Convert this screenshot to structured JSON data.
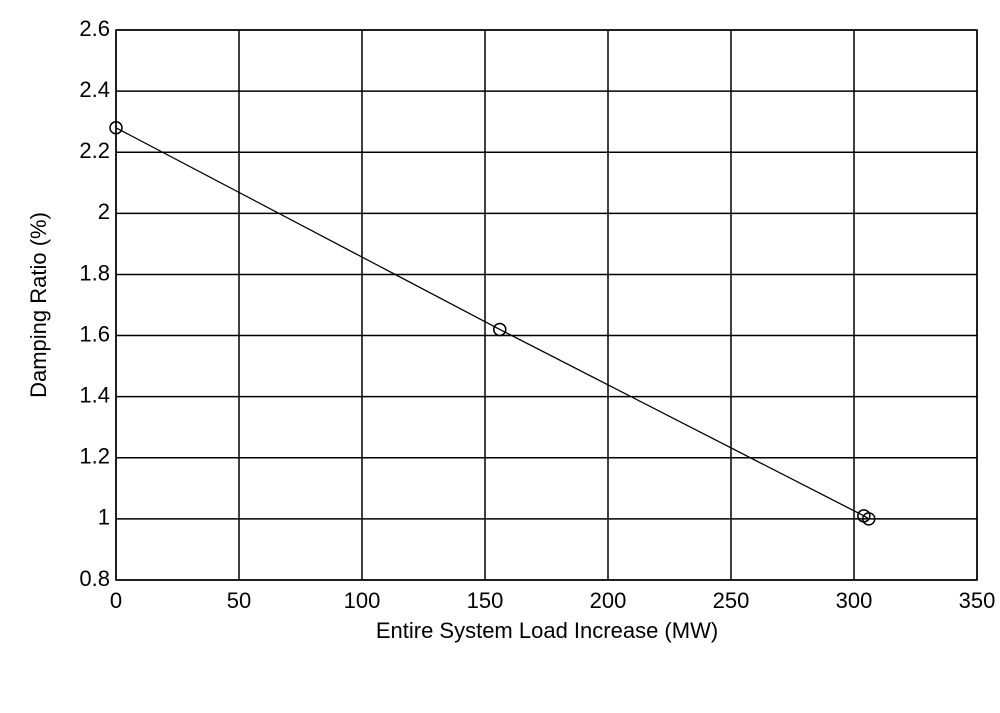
{
  "chart_data": {
    "type": "line",
    "xlabel": "Entire System Load Increase (MW)",
    "ylabel": "Damping Ratio (%)",
    "x": [
      0,
      156,
      304,
      306
    ],
    "values": [
      2.28,
      1.62,
      1.01,
      1.0
    ],
    "color": "#000000",
    "marker": "open-circle",
    "xlim": [
      0,
      350
    ],
    "xticks": [
      0,
      50,
      100,
      150,
      200,
      250,
      300,
      350
    ],
    "ylim": [
      0.8,
      2.6
    ],
    "yticks": [
      0.8,
      1,
      1.2,
      1.4,
      1.6,
      1.8,
      2,
      2.2,
      2.4,
      2.6
    ],
    "grid": true
  }
}
